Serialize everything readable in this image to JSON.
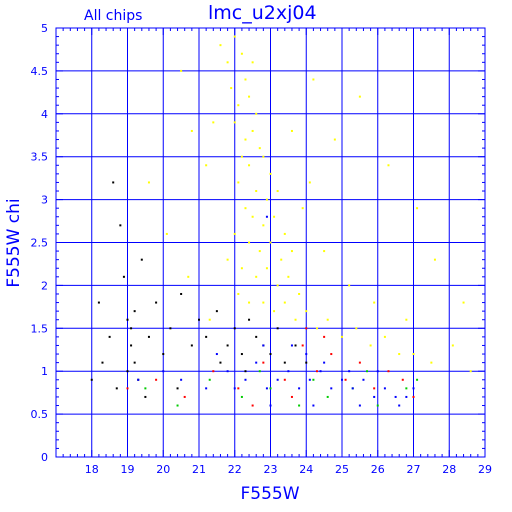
{
  "chart_data": {
    "type": "scatter",
    "title": "lmc_u2xj04",
    "subtitle": "All chips",
    "xlabel": "F555W",
    "ylabel": "F555W chi",
    "xlim": [
      17,
      29
    ],
    "ylim": [
      0,
      5
    ],
    "x_ticks": [
      "18",
      "19",
      "20",
      "21",
      "22",
      "23",
      "24",
      "25",
      "26",
      "27",
      "28",
      "29"
    ],
    "y_ticks": [
      "0",
      "0.5",
      "1",
      "1.5",
      "2",
      "2.5",
      "3",
      "3.5",
      "4",
      "4.5",
      "5"
    ],
    "grid": true,
    "series": [
      {
        "color": "#ffff00",
        "points": [
          [
            21.6,
            4.8
          ],
          [
            21.8,
            4.6
          ],
          [
            22.0,
            4.9
          ],
          [
            22.2,
            4.7
          ],
          [
            22.3,
            4.4
          ],
          [
            22.5,
            4.6
          ],
          [
            21.9,
            4.3
          ],
          [
            22.1,
            4.1
          ],
          [
            22.4,
            4.2
          ],
          [
            22.6,
            4.0
          ],
          [
            22.0,
            3.9
          ],
          [
            22.3,
            3.7
          ],
          [
            22.5,
            3.8
          ],
          [
            22.7,
            3.6
          ],
          [
            22.2,
            3.5
          ],
          [
            22.4,
            3.4
          ],
          [
            22.8,
            3.5
          ],
          [
            23.0,
            3.3
          ],
          [
            22.1,
            3.2
          ],
          [
            22.6,
            3.1
          ],
          [
            22.9,
            3.0
          ],
          [
            23.2,
            3.1
          ],
          [
            22.3,
            2.9
          ],
          [
            22.5,
            2.8
          ],
          [
            22.8,
            2.7
          ],
          [
            23.1,
            2.8
          ],
          [
            23.4,
            2.6
          ],
          [
            22.0,
            2.6
          ],
          [
            22.4,
            2.5
          ],
          [
            22.7,
            2.4
          ],
          [
            23.0,
            2.5
          ],
          [
            23.3,
            2.3
          ],
          [
            23.6,
            2.4
          ],
          [
            21.8,
            2.3
          ],
          [
            22.2,
            2.2
          ],
          [
            22.6,
            2.1
          ],
          [
            22.9,
            2.2
          ],
          [
            23.2,
            2.0
          ],
          [
            23.5,
            2.1
          ],
          [
            23.8,
            1.9
          ],
          [
            22.1,
            1.9
          ],
          [
            22.4,
            1.8
          ],
          [
            22.8,
            1.8
          ],
          [
            23.1,
            1.7
          ],
          [
            23.4,
            1.8
          ],
          [
            23.7,
            1.6
          ],
          [
            24.0,
            1.7
          ],
          [
            24.3,
            1.5
          ],
          [
            24.6,
            1.6
          ],
          [
            25.0,
            1.4
          ],
          [
            25.4,
            1.5
          ],
          [
            25.8,
            1.3
          ],
          [
            26.2,
            1.4
          ],
          [
            26.6,
            1.2
          ],
          [
            27.0,
            1.2
          ],
          [
            27.5,
            1.1
          ],
          [
            28.1,
            1.3
          ],
          [
            28.6,
            1.0
          ],
          [
            21.4,
            3.9
          ],
          [
            21.2,
            3.4
          ],
          [
            20.5,
            4.5
          ],
          [
            20.8,
            3.8
          ],
          [
            24.2,
            4.4
          ],
          [
            24.8,
            3.7
          ],
          [
            25.5,
            4.2
          ],
          [
            26.3,
            3.4
          ],
          [
            27.1,
            2.9
          ],
          [
            27.6,
            2.3
          ],
          [
            28.4,
            1.8
          ],
          [
            19.6,
            3.2
          ],
          [
            20.1,
            2.6
          ],
          [
            20.7,
            2.1
          ],
          [
            23.9,
            2.9
          ],
          [
            24.5,
            2.4
          ],
          [
            25.2,
            2.0
          ],
          [
            25.9,
            1.8
          ],
          [
            26.8,
            1.6
          ],
          [
            21.3,
            1.6
          ],
          [
            23.6,
            3.8
          ],
          [
            24.1,
            3.2
          ]
        ]
      },
      {
        "color": "#000000",
        "points": [
          [
            18.6,
            3.2
          ],
          [
            18.8,
            2.7
          ],
          [
            18.9,
            2.1
          ],
          [
            19.0,
            1.6
          ],
          [
            19.1,
            1.3
          ],
          [
            19.2,
            1.1
          ],
          [
            19.3,
            0.9
          ],
          [
            19.1,
            1.5
          ],
          [
            19.2,
            1.7
          ],
          [
            19.0,
            1.0
          ],
          [
            18.5,
            1.4
          ],
          [
            18.3,
            1.1
          ],
          [
            18.0,
            0.9
          ],
          [
            18.2,
            1.8
          ],
          [
            19.4,
            2.3
          ],
          [
            19.6,
            1.4
          ],
          [
            19.8,
            1.8
          ],
          [
            20.0,
            1.2
          ],
          [
            20.2,
            1.5
          ],
          [
            20.5,
            1.9
          ],
          [
            20.8,
            1.3
          ],
          [
            21.0,
            1.6
          ],
          [
            21.2,
            1.4
          ],
          [
            21.5,
            1.7
          ],
          [
            21.8,
            1.3
          ],
          [
            22.0,
            1.5
          ],
          [
            22.2,
            1.2
          ],
          [
            22.4,
            1.6
          ],
          [
            22.6,
            1.4
          ],
          [
            22.8,
            1.3
          ],
          [
            23.0,
            1.2
          ],
          [
            23.2,
            1.5
          ],
          [
            23.4,
            1.1
          ],
          [
            21.6,
            1.1
          ],
          [
            22.3,
            1.0
          ],
          [
            20.4,
            0.8
          ],
          [
            19.5,
            0.7
          ],
          [
            18.7,
            0.8
          ],
          [
            23.7,
            1.3
          ],
          [
            24.0,
            1.1
          ]
        ]
      },
      {
        "color": "#ff0000",
        "points": [
          [
            19.0,
            0.8
          ],
          [
            19.8,
            0.9
          ],
          [
            20.6,
            0.7
          ],
          [
            21.4,
            1.0
          ],
          [
            22.1,
            0.8
          ],
          [
            22.8,
            1.1
          ],
          [
            23.4,
            0.9
          ],
          [
            23.9,
            1.3
          ],
          [
            24.3,
            1.0
          ],
          [
            24.7,
            1.2
          ],
          [
            25.1,
            0.9
          ],
          [
            25.5,
            1.1
          ],
          [
            25.9,
            0.8
          ],
          [
            26.3,
            1.0
          ],
          [
            26.7,
            0.9
          ],
          [
            27.0,
            0.7
          ],
          [
            24.0,
            1.5
          ],
          [
            24.5,
            1.4
          ],
          [
            23.6,
            0.7
          ],
          [
            22.5,
            0.6
          ]
        ]
      },
      {
        "color": "#00cc00",
        "points": [
          [
            19.5,
            0.8
          ],
          [
            20.4,
            0.6
          ],
          [
            21.3,
            0.9
          ],
          [
            22.2,
            0.7
          ],
          [
            23.0,
            0.8
          ],
          [
            23.8,
            0.6
          ],
          [
            24.6,
            0.7
          ],
          [
            25.3,
            0.8
          ],
          [
            26.0,
            0.6
          ],
          [
            26.8,
            0.8
          ],
          [
            24.2,
            0.9
          ],
          [
            25.7,
            1.0
          ],
          [
            27.1,
            0.9
          ],
          [
            22.7,
            1.0
          ]
        ]
      },
      {
        "color": "#0000ff",
        "points": [
          [
            21.8,
            1.0
          ],
          [
            22.0,
            0.8
          ],
          [
            22.3,
            0.9
          ],
          [
            22.6,
            1.1
          ],
          [
            22.9,
            0.8
          ],
          [
            23.2,
            0.9
          ],
          [
            23.5,
            1.0
          ],
          [
            23.8,
            0.8
          ],
          [
            24.1,
            0.9
          ],
          [
            24.4,
            1.0
          ],
          [
            24.7,
            0.8
          ],
          [
            25.0,
            0.9
          ],
          [
            25.3,
            0.8
          ],
          [
            25.6,
            0.9
          ],
          [
            25.9,
            0.7
          ],
          [
            26.2,
            0.8
          ],
          [
            26.5,
            0.7
          ],
          [
            26.8,
            0.7
          ],
          [
            27.0,
            0.8
          ],
          [
            24.0,
            1.2
          ],
          [
            24.5,
            1.1
          ],
          [
            25.2,
            1.0
          ],
          [
            23.6,
            1.3
          ],
          [
            22.8,
            1.3
          ],
          [
            23.0,
            0.6
          ],
          [
            24.2,
            0.6
          ],
          [
            25.5,
            0.6
          ],
          [
            26.6,
            0.6
          ],
          [
            20.5,
            0.9
          ],
          [
            21.2,
            0.8
          ],
          [
            19.3,
            0.9
          ],
          [
            20.0,
            1.0
          ],
          [
            22.9,
            2.8
          ],
          [
            21.5,
            1.2
          ],
          [
            26.0,
            1.0
          ]
        ]
      }
    ]
  }
}
